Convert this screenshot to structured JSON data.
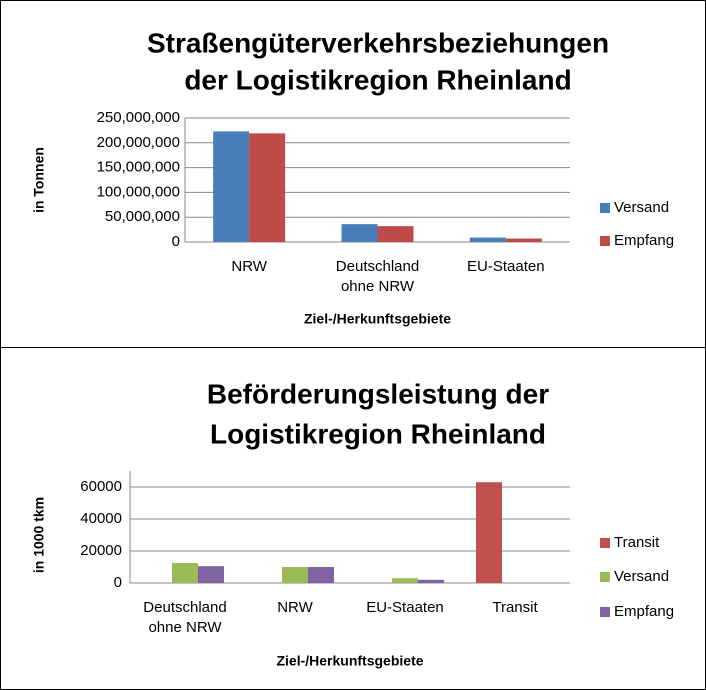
{
  "chart_data": [
    {
      "type": "bar",
      "title": [
        "Straßengüterverkehrsbeziehungen",
        "der Logistikregion  Rheinland"
      ],
      "y_label": "in Tonnen",
      "x_label": "Ziel-/Herkunftsgebiete",
      "categories": [
        "NRW",
        "Deutschland ohne NRW",
        "EU-Staaten"
      ],
      "series": [
        {
          "name": "Versand",
          "color": "#4a7ebb",
          "values": [
            223000000,
            36000000,
            9000000
          ]
        },
        {
          "name": "Empfang",
          "color": "#be4b48",
          "values": [
            219000000,
            32000000,
            7000000
          ]
        }
      ],
      "ylim": [
        0,
        250000000
      ],
      "yticks": [
        0,
        {
          "value": 50000000,
          "label": "50,000,000"
        },
        {
          "value": 100000000,
          "label": "100,000,000"
        },
        {
          "value": 150000000,
          "label": "150,000,000"
        },
        {
          "value": 200000000,
          "label": "200,000,000"
        },
        {
          "value": 250000000,
          "label": "250,000,000"
        }
      ],
      "grid": true,
      "legend": "right"
    },
    {
      "type": "bar",
      "title": [
        "Beförderungsleistung der",
        "Logistikregion Rheinland"
      ],
      "y_label": "in 1000 tkm",
      "x_label": "Ziel-/Herkunftsgebiete",
      "categories": [
        "Deutschland ohne NRW",
        "NRW",
        "EU-Staaten",
        "Transit"
      ],
      "series": [
        {
          "name": "Transit",
          "color": "#c0504d",
          "values": [
            null,
            null,
            null,
            63000
          ]
        },
        {
          "name": "Versand",
          "color": "#9bbb59",
          "values": [
            12500,
            10000,
            3000,
            null
          ]
        },
        {
          "name": "Empfang",
          "color": "#8064a2",
          "values": [
            10500,
            10000,
            2000,
            null
          ]
        }
      ],
      "ylim": [
        0,
        70000
      ],
      "yticks": [
        0,
        20000,
        40000,
        60000
      ],
      "grid": true,
      "legend": "right"
    }
  ]
}
